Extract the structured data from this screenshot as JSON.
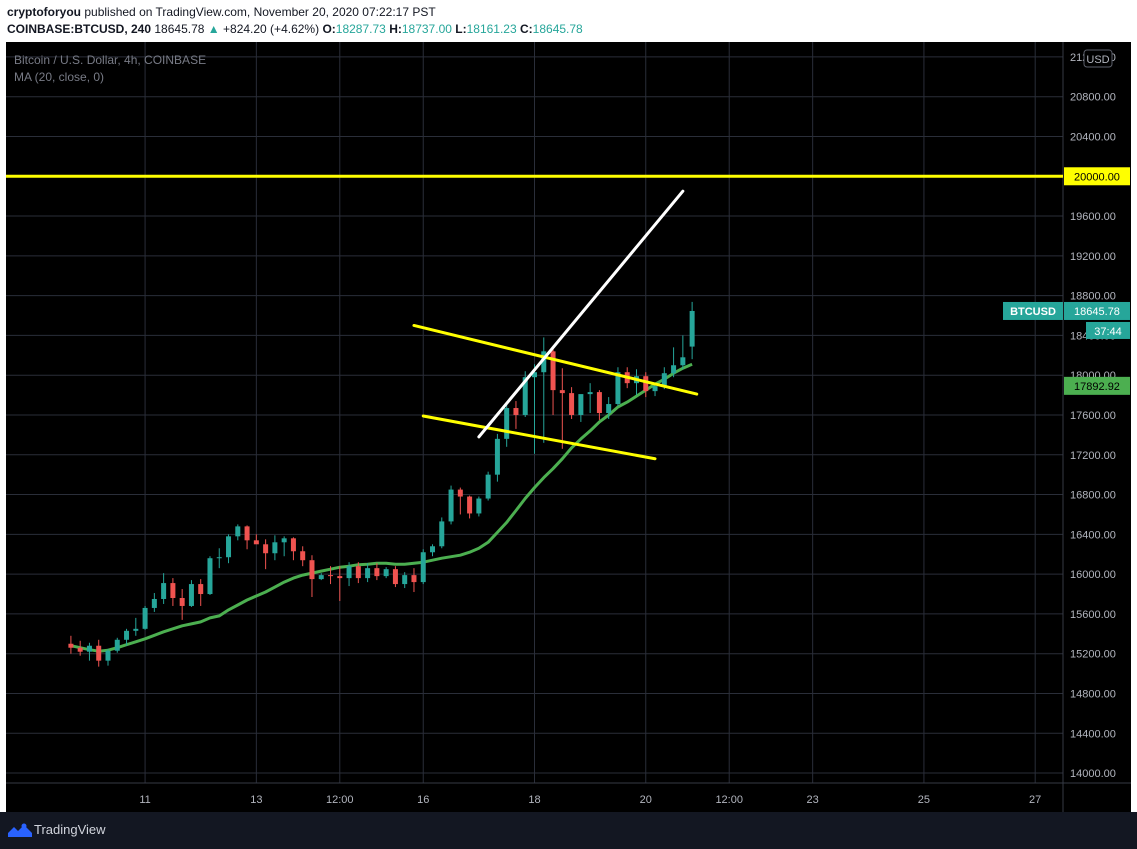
{
  "header": {
    "author": "cryptoforyou",
    "published_text": "published on TradingView.com, November 20, 2020 07:22:17 PST",
    "symbol": "COINBASE:BTCUSD, 240",
    "last_price": "18645.78",
    "change_arrow": "▲",
    "change": "+824.20 (+4.62%)",
    "open_label": "O:",
    "open": "18287.73",
    "high_label": "H:",
    "high": "18737.00",
    "low_label": "L:",
    "low": "18161.23",
    "close_label": "C:",
    "close": "18645.78"
  },
  "legend": {
    "title": "Bitcoin / U.S. Dollar, 4h, COINBASE",
    "indicator": "MA (20, close, 0)"
  },
  "footer": {
    "brand": "TradingView"
  },
  "colors": {
    "background": "#000000",
    "up": "#26a69a",
    "down": "#ef5350",
    "ma": "#4caf50",
    "yellow_line": "#ffff00",
    "white_line": "#ffffff",
    "grid": "#2a2e39",
    "axis_text": "#b2b5be"
  },
  "chart_data": {
    "type": "candlestick",
    "currency": "USD",
    "ylim": [
      13900,
      21350
    ],
    "y_ticks": [
      14000,
      14400,
      14800,
      15200,
      15600,
      16000,
      16400,
      16800,
      17200,
      17600,
      18000,
      18400,
      18800,
      19200,
      19600,
      20000,
      20400,
      20800,
      21200
    ],
    "y_tick_labels": [
      "14000.00",
      "14400.00",
      "14800.00",
      "15200.00",
      "15600.00",
      "16000.00",
      "16400.00",
      "16800.00",
      "17200.00",
      "17600.00",
      "18000.00",
      "18400.00",
      "18800.00",
      "19200.00",
      "19600.00",
      "20000.00",
      "20400.00",
      "20800.00",
      "21200.00"
    ],
    "xlim": [
      -7,
      107
    ],
    "x_ticks": [
      {
        "bar": 8,
        "label": "11"
      },
      {
        "bar": 20,
        "label": "13"
      },
      {
        "bar": 29,
        "label": "12:00"
      },
      {
        "bar": 38,
        "label": "16"
      },
      {
        "bar": 50,
        "label": "18"
      },
      {
        "bar": 62,
        "label": "20"
      },
      {
        "bar": 71,
        "label": "12:00"
      },
      {
        "bar": 80,
        "label": "23"
      },
      {
        "bar": 92,
        "label": "25"
      },
      {
        "bar": 104,
        "label": "27"
      }
    ],
    "grid": true,
    "candles": [
      [
        15300,
        15380,
        15200,
        15260
      ],
      [
        15260,
        15330,
        15180,
        15220
      ],
      [
        15220,
        15310,
        15130,
        15280
      ],
      [
        15280,
        15340,
        15070,
        15130
      ],
      [
        15130,
        15250,
        15080,
        15230
      ],
      [
        15230,
        15360,
        15210,
        15340
      ],
      [
        15340,
        15450,
        15280,
        15430
      ],
      [
        15430,
        15560,
        15380,
        15450
      ],
      [
        15450,
        15680,
        15440,
        15660
      ],
      [
        15660,
        15810,
        15620,
        15750
      ],
      [
        15750,
        16010,
        15700,
        15910
      ],
      [
        15910,
        15960,
        15680,
        15760
      ],
      [
        15760,
        15850,
        15540,
        15680
      ],
      [
        15680,
        15940,
        15670,
        15900
      ],
      [
        15900,
        15950,
        15680,
        15800
      ],
      [
        15800,
        16180,
        15790,
        16160
      ],
      [
        16160,
        16260,
        16060,
        16170
      ],
      [
        16170,
        16400,
        16110,
        16380
      ],
      [
        16380,
        16500,
        16340,
        16480
      ],
      [
        16480,
        16490,
        16250,
        16340
      ],
      [
        16340,
        16400,
        16310,
        16300
      ],
      [
        16300,
        16350,
        16050,
        16210
      ],
      [
        16210,
        16390,
        16140,
        16320
      ],
      [
        16320,
        16380,
        16180,
        16360
      ],
      [
        16360,
        16370,
        16140,
        16230
      ],
      [
        16230,
        16280,
        16080,
        16140
      ],
      [
        16140,
        16190,
        15770,
        15950
      ],
      [
        15950,
        16010,
        15940,
        15990
      ],
      [
        15990,
        16080,
        15900,
        15980
      ],
      [
        15980,
        16080,
        15730,
        15960
      ],
      [
        15960,
        16120,
        15880,
        16080
      ],
      [
        16080,
        16120,
        15910,
        15960
      ],
      [
        15960,
        16110,
        15920,
        16060
      ],
      [
        16060,
        16110,
        15940,
        15980
      ],
      [
        15980,
        16070,
        15960,
        16050
      ],
      [
        16050,
        16080,
        15870,
        15900
      ],
      [
        15900,
        16020,
        15860,
        15990
      ],
      [
        15990,
        16060,
        15820,
        15920
      ],
      [
        15920,
        16250,
        15900,
        16220
      ],
      [
        16220,
        16300,
        16180,
        16280
      ],
      [
        16280,
        16570,
        16260,
        16530
      ],
      [
        16530,
        16890,
        16500,
        16850
      ],
      [
        16850,
        16870,
        16600,
        16780
      ],
      [
        16780,
        16790,
        16560,
        16610
      ],
      [
        16610,
        16780,
        16580,
        16760
      ],
      [
        16760,
        17030,
        16740,
        17000
      ],
      [
        17000,
        17410,
        16930,
        17360
      ],
      [
        17360,
        17730,
        17280,
        17670
      ],
      [
        17670,
        17740,
        17460,
        17600
      ],
      [
        17600,
        18040,
        17580,
        17980
      ],
      [
        17980,
        18110,
        17210,
        18030
      ],
      [
        18030,
        18380,
        17320,
        18240
      ],
      [
        18240,
        18290,
        17600,
        17850
      ],
      [
        17850,
        18070,
        17260,
        17820
      ],
      [
        17820,
        17880,
        17560,
        17600
      ],
      [
        17600,
        17780,
        17530,
        17810
      ],
      [
        17810,
        17920,
        17620,
        17830
      ],
      [
        17830,
        17850,
        17550,
        17620
      ],
      [
        17620,
        17780,
        17560,
        17710
      ],
      [
        17710,
        18080,
        17690,
        18030
      ],
      [
        18030,
        18080,
        17870,
        17920
      ],
      [
        17920,
        18060,
        17800,
        17990
      ],
      [
        17990,
        18030,
        17780,
        17840
      ],
      [
        17840,
        17920,
        17790,
        17890
      ],
      [
        17890,
        18080,
        17860,
        18020
      ],
      [
        18020,
        18280,
        17980,
        18100
      ],
      [
        18100,
        18400,
        18060,
        18180
      ],
      [
        18287.73,
        18737,
        18161.23,
        18645.78
      ]
    ],
    "ma": [
      15280,
      15260,
      15240,
      15225,
      15235,
      15260,
      15290,
      15320,
      15350,
      15385,
      15420,
      15450,
      15480,
      15500,
      15520,
      15560,
      15580,
      15640,
      15690,
      15740,
      15780,
      15820,
      15870,
      15920,
      15960,
      15990,
      16010,
      16030,
      16050,
      16070,
      16080,
      16095,
      16100,
      16110,
      16110,
      16100,
      16100,
      16110,
      16120,
      16140,
      16160,
      16175,
      16190,
      16220,
      16260,
      16320,
      16420,
      16520,
      16640,
      16760,
      16870,
      16970,
      17060,
      17160,
      17270,
      17360,
      17440,
      17530,
      17600,
      17680,
      17730,
      17790,
      17850,
      17910,
      17960,
      18020,
      18070,
      18110
    ],
    "hlines": [
      {
        "value": 20000,
        "label": "20000.00"
      }
    ],
    "trendlines": [
      {
        "color": "yellow",
        "from": [
          37.0,
          18500
        ],
        "to": [
          67.5,
          17810
        ]
      },
      {
        "color": "yellow",
        "from": [
          38.0,
          17590
        ],
        "to": [
          63.0,
          17160
        ]
      },
      {
        "color": "white",
        "from": [
          44.0,
          17380
        ],
        "to": [
          66.0,
          19850
        ]
      }
    ],
    "price_labels": [
      {
        "text": "BTCUSD",
        "value": "18645.78",
        "color": "#26a69a"
      },
      {
        "text": "37:44",
        "color": "#26a69a"
      },
      {
        "value": "17892.92",
        "color": "#4caf50"
      }
    ]
  }
}
